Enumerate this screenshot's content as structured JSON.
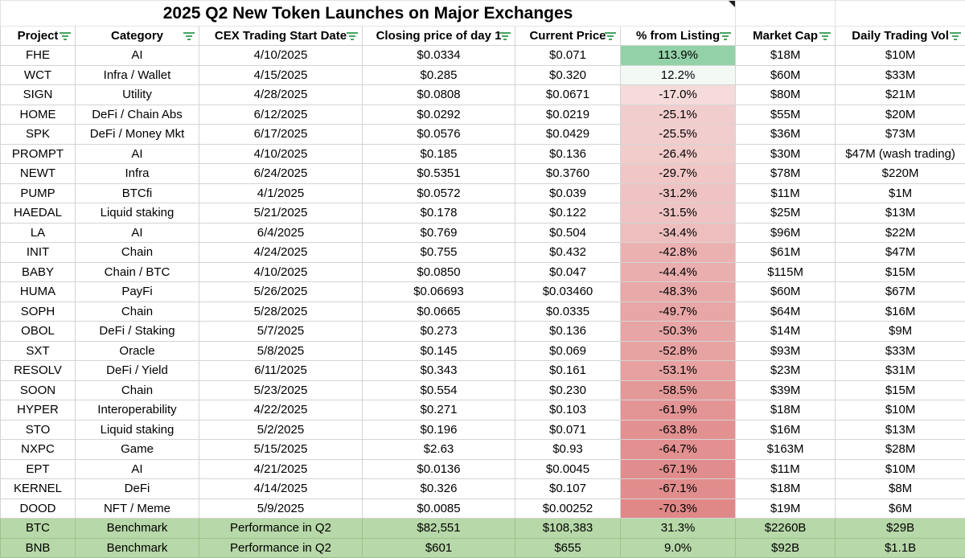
{
  "title": "2025 Q2 New Token Launches on Major Exchanges",
  "columns": [
    "Project",
    "Category",
    "CEX Trading Start Date",
    "Closing price of day 1",
    "Current Price",
    "% from Listing",
    "Market Cap",
    "Daily Trading Vol"
  ],
  "rows": [
    {
      "project": "FHE",
      "category": "AI",
      "start": "4/10/2025",
      "close": "$0.0334",
      "current": "$0.071",
      "pct": "113.9%",
      "pct_value": 113.9,
      "mcap": "$18M",
      "vol": "$10M"
    },
    {
      "project": "WCT",
      "category": "Infra / Wallet",
      "start": "4/15/2025",
      "close": "$0.285",
      "current": "$0.320",
      "pct": "12.2%",
      "pct_value": 12.2,
      "mcap": "$60M",
      "vol": "$33M"
    },
    {
      "project": "SIGN",
      "category": "Utility",
      "start": "4/28/2025",
      "close": "$0.0808",
      "current": "$0.0671",
      "pct": "-17.0%",
      "pct_value": -17.0,
      "mcap": "$80M",
      "vol": "$21M"
    },
    {
      "project": "HOME",
      "category": "DeFi / Chain Abs",
      "start": "6/12/2025",
      "close": "$0.0292",
      "current": "$0.0219",
      "pct": "-25.1%",
      "pct_value": -25.1,
      "mcap": "$55M",
      "vol": "$20M"
    },
    {
      "project": "SPK",
      "category": "DeFi / Money Mkt",
      "start": "6/17/2025",
      "close": "$0.0576",
      "current": "$0.0429",
      "pct": "-25.5%",
      "pct_value": -25.5,
      "mcap": "$36M",
      "vol": "$73M"
    },
    {
      "project": "PROMPT",
      "category": "AI",
      "start": "4/10/2025",
      "close": "$0.185",
      "current": "$0.136",
      "pct": "-26.4%",
      "pct_value": -26.4,
      "mcap": "$30M",
      "vol": "$47M (wash trading)"
    },
    {
      "project": "NEWT",
      "category": "Infra",
      "start": "6/24/2025",
      "close": "$0.5351",
      "current": "$0.3760",
      "pct": "-29.7%",
      "pct_value": -29.7,
      "mcap": "$78M",
      "vol": "$220M"
    },
    {
      "project": "PUMP",
      "category": "BTCfi",
      "start": "4/1/2025",
      "close": "$0.0572",
      "current": "$0.039",
      "pct": "-31.2%",
      "pct_value": -31.2,
      "mcap": "$11M",
      "vol": "$1M"
    },
    {
      "project": "HAEDAL",
      "category": "Liquid staking",
      "start": "5/21/2025",
      "close": "$0.178",
      "current": "$0.122",
      "pct": "-31.5%",
      "pct_value": -31.5,
      "mcap": "$25M",
      "vol": "$13M"
    },
    {
      "project": "LA",
      "category": "AI",
      "start": "6/4/2025",
      "close": "$0.769",
      "current": "$0.504",
      "pct": "-34.4%",
      "pct_value": -34.4,
      "mcap": "$96M",
      "vol": "$22M"
    },
    {
      "project": "INIT",
      "category": "Chain",
      "start": "4/24/2025",
      "close": "$0.755",
      "current": "$0.432",
      "pct": "-42.8%",
      "pct_value": -42.8,
      "mcap": "$61M",
      "vol": "$47M"
    },
    {
      "project": "BABY",
      "category": "Chain / BTC",
      "start": "4/10/2025",
      "close": "$0.0850",
      "current": "$0.047",
      "pct": "-44.4%",
      "pct_value": -44.4,
      "mcap": "$115M",
      "vol": "$15M"
    },
    {
      "project": "HUMA",
      "category": "PayFi",
      "start": "5/26/2025",
      "close": "$0.06693",
      "current": "$0.03460",
      "pct": "-48.3%",
      "pct_value": -48.3,
      "mcap": "$60M",
      "vol": "$67M"
    },
    {
      "project": "SOPH",
      "category": "Chain",
      "start": "5/28/2025",
      "close": "$0.0665",
      "current": "$0.0335",
      "pct": "-49.7%",
      "pct_value": -49.7,
      "mcap": "$64M",
      "vol": "$16M"
    },
    {
      "project": "OBOL",
      "category": "DeFi / Staking",
      "start": "5/7/2025",
      "close": "$0.273",
      "current": "$0.136",
      "pct": "-50.3%",
      "pct_value": -50.3,
      "mcap": "$14M",
      "vol": "$9M"
    },
    {
      "project": "SXT",
      "category": "Oracle",
      "start": "5/8/2025",
      "close": "$0.145",
      "current": "$0.069",
      "pct": "-52.8%",
      "pct_value": -52.8,
      "mcap": "$93M",
      "vol": "$33M"
    },
    {
      "project": "RESOLV",
      "category": "DeFi / Yield",
      "start": "6/11/2025",
      "close": "$0.343",
      "current": "$0.161",
      "pct": "-53.1%",
      "pct_value": -53.1,
      "mcap": "$23M",
      "vol": "$31M"
    },
    {
      "project": "SOON",
      "category": "Chain",
      "start": "5/23/2025",
      "close": "$0.554",
      "current": "$0.230",
      "pct": "-58.5%",
      "pct_value": -58.5,
      "mcap": "$39M",
      "vol": "$15M"
    },
    {
      "project": "HYPER",
      "category": "Interoperability",
      "start": "4/22/2025",
      "close": "$0.271",
      "current": "$0.103",
      "pct": "-61.9%",
      "pct_value": -61.9,
      "mcap": "$18M",
      "vol": "$10M"
    },
    {
      "project": "STO",
      "category": "Liquid staking",
      "start": "5/2/2025",
      "close": "$0.196",
      "current": "$0.071",
      "pct": "-63.8%",
      "pct_value": -63.8,
      "mcap": "$16M",
      "vol": "$13M"
    },
    {
      "project": "NXPC",
      "category": "Game",
      "start": "5/15/2025",
      "close": "$2.63",
      "current": "$0.93",
      "pct": "-64.7%",
      "pct_value": -64.7,
      "mcap": "$163M",
      "vol": "$28M"
    },
    {
      "project": "EPT",
      "category": "AI",
      "start": "4/21/2025",
      "close": "$0.0136",
      "current": "$0.0045",
      "pct": "-67.1%",
      "pct_value": -67.1,
      "mcap": "$11M",
      "vol": "$10M"
    },
    {
      "project": "KERNEL",
      "category": "DeFi",
      "start": "4/14/2025",
      "close": "$0.326",
      "current": "$0.107",
      "pct": "-67.1%",
      "pct_value": -67.1,
      "mcap": "$18M",
      "vol": "$8M"
    },
    {
      "project": "DOOD",
      "category": "NFT / Meme",
      "start": "5/9/2025",
      "close": "$0.0085",
      "current": "$0.00252",
      "pct": "-70.3%",
      "pct_value": -70.3,
      "mcap": "$19M",
      "vol": "$6M"
    }
  ],
  "benchmarks": [
    {
      "project": "BTC",
      "category": "Benchmark",
      "start": "Performance in Q2",
      "close": "$82,551",
      "current": "$108,383",
      "pct": "31.3%",
      "mcap": "$2260B",
      "vol": "$29B"
    },
    {
      "project": "BNB",
      "category": "Benchmark",
      "start": "Performance in Q2",
      "close": "$601",
      "current": "$655",
      "pct": "9.0%",
      "mcap": "$92B",
      "vol": "$1.1B"
    }
  ],
  "colors": {
    "positive_max": "#93d2a8",
    "negative_max": "#e08888",
    "benchmark_fill": "#b7d8a8",
    "filter_icon": "#1a8f3a",
    "gridline": "#d4d4d4"
  }
}
